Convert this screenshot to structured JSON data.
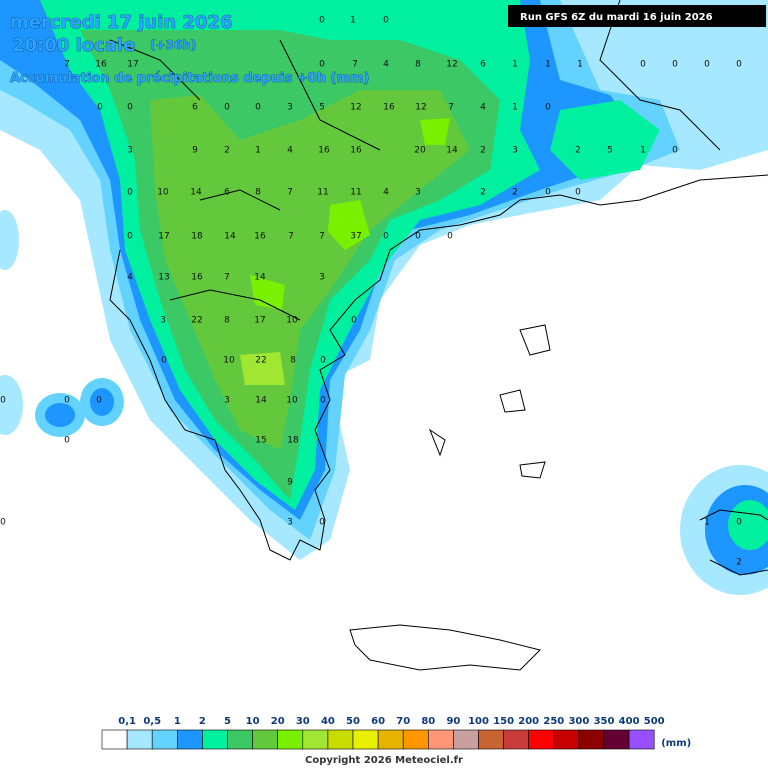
{
  "header": {
    "date": "mercredi 17 juin 2026",
    "time": "20:00 locale",
    "lead": "(+36h)",
    "subtitle": "Accumulation de précipitations depuis +0h (mm)",
    "run": "Run GFS 6Z du mardi 16 juin 2026"
  },
  "map": {
    "labels": [
      0,
      1,
      0,
      7,
      16,
      17,
      0,
      7,
      4,
      8,
      12,
      6,
      1,
      1,
      1,
      0,
      0,
      0,
      0,
      0,
      0,
      6,
      0,
      0,
      3,
      5,
      12,
      16,
      12,
      7,
      4,
      1,
      0,
      3,
      9,
      2,
      1,
      4,
      16,
      16,
      20,
      14,
      2,
      3,
      2,
      5,
      1,
      0,
      0,
      10,
      14,
      6,
      8,
      7,
      11,
      11,
      4,
      3,
      2,
      2,
      0,
      0,
      0,
      17,
      18,
      14,
      16,
      7,
      7,
      37,
      0,
      0,
      0,
      4,
      13,
      16,
      7,
      14,
      3,
      3,
      22,
      8,
      17,
      10,
      0,
      0,
      10,
      22,
      8,
      0,
      0,
      0,
      0,
      3,
      14,
      10,
      0,
      0,
      15,
      18,
      9,
      0,
      3,
      0,
      1,
      0,
      2
    ]
  },
  "legend": {
    "labels": [
      "0,1",
      "0,5",
      "1",
      "2",
      "5",
      "10",
      "20",
      "30",
      "40",
      "50",
      "60",
      "70",
      "80",
      "90",
      "100",
      "150",
      "200",
      "250",
      "300",
      "350",
      "400",
      "500"
    ],
    "colors": [
      "#ffffff",
      "#a6e8ff",
      "#64d2ff",
      "#1e96ff",
      "#00f0a0",
      "#3cc864",
      "#64c83c",
      "#78f000",
      "#a0e632",
      "#c8dc00",
      "#e6f000",
      "#e6b400",
      "#ff9600",
      "#ff9678",
      "#c8a0a0",
      "#c86432",
      "#c83c3c",
      "#ff0000",
      "#c80000",
      "#8c0000",
      "#640032",
      "#9650ff"
    ],
    "unit": "(mm)"
  },
  "footer": {
    "copyright": "Copyright 2026 Meteociel.fr"
  }
}
